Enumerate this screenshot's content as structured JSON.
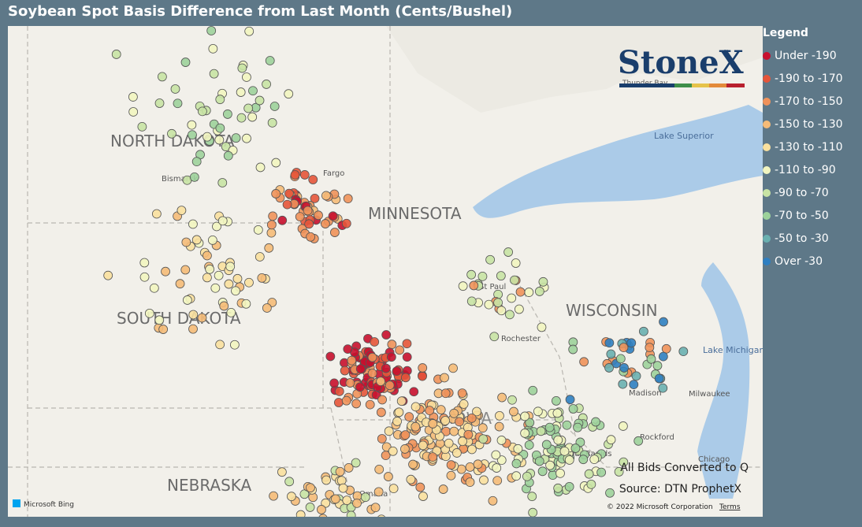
{
  "title": "Soybean Spot Basis Difference from Last Month (Cents/Bushel)",
  "legend": {
    "title": "Legend",
    "items": [
      {
        "label": "Under -190",
        "color": "#c8102e"
      },
      {
        "label": "-190 to -170",
        "color": "#e5553a"
      },
      {
        "label": "-170 to -150",
        "color": "#f0925a"
      },
      {
        "label": "-150 to -130",
        "color": "#f5bb78"
      },
      {
        "label": "-130 to -110",
        "color": "#f9e09e"
      },
      {
        "label": "-110 to -90",
        "color": "#f2f5c0"
      },
      {
        "label": "-90 to -70",
        "color": "#c8e3a4"
      },
      {
        "label": "-70 to -50",
        "color": "#9dd29b"
      },
      {
        "label": "-50 to -30",
        "color": "#6ab0b0"
      },
      {
        "label": "Over -30",
        "color": "#2f7fc1"
      }
    ]
  },
  "map": {
    "labels": [
      "NORTH DAKOTA",
      "MINNESOTA",
      "SOUTH DAKOTA",
      "WISCONSIN",
      "NEBRASKA",
      "IOWA",
      "Bismarck",
      "Fargo",
      "St Paul",
      "Rochester",
      "Madison",
      "Milwaukee",
      "Rockford",
      "Cedar Rapids",
      "Omaha",
      "Chicago",
      "Lake Superior",
      "Lake Michigan",
      "Thunder Bay"
    ],
    "logo": "StoneX",
    "trademark": "™",
    "notes": [
      "All Bids Converted to Q",
      "Source: DTN ProphetX"
    ],
    "copyright": "© 2022 Microsoft Corporation",
    "terms": "Terms",
    "provider": "Microsoft Bing"
  }
}
